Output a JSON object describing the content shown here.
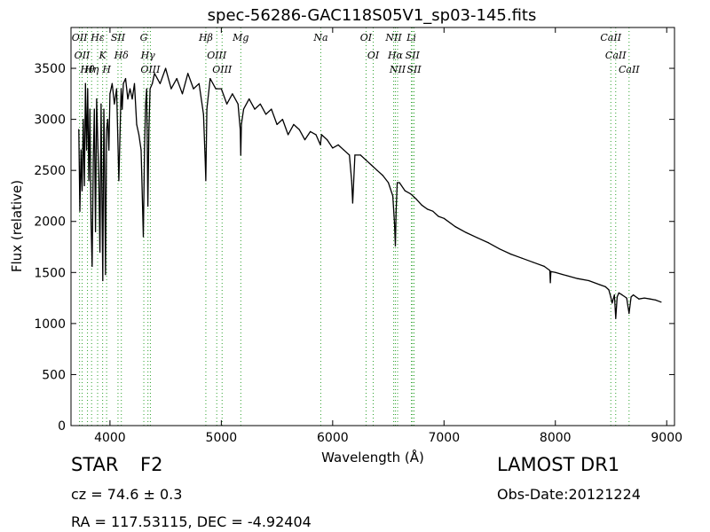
{
  "chart_data": {
    "type": "line",
    "title": "spec-56286-GAC118S05V1_sp03-145.fits",
    "xlabel": "Wavelength (Å)",
    "ylabel": "Flux (relative)",
    "xlim": [
      3650,
      9070
    ],
    "ylim": [
      0,
      3900
    ],
    "xticks": [
      4000,
      5000,
      6000,
      7000,
      8000,
      9000
    ],
    "yticks": [
      0,
      500,
      1000,
      1500,
      2000,
      2500,
      3000,
      3500
    ],
    "grid": false,
    "line_color": "#000000",
    "marker_color": "#2ca02c",
    "series": [
      {
        "x": [
          3720,
          3730,
          3740,
          3750,
          3760,
          3770,
          3780,
          3790,
          3800,
          3810,
          3820,
          3830,
          3840,
          3850,
          3860,
          3870,
          3880,
          3890,
          3900,
          3910,
          3920,
          3935,
          3945,
          3950,
          3960,
          3970,
          3980,
          3990,
          4000,
          4020,
          4040,
          4060,
          4080,
          4100,
          4110,
          4120,
          4140,
          4160,
          4180,
          4200,
          4220,
          4240,
          4260,
          4280,
          4300,
          4310,
          4320,
          4330,
          4340,
          4350,
          4360,
          4380,
          4400,
          4450,
          4500,
          4550,
          4600,
          4650,
          4700,
          4750,
          4800,
          4840,
          4855,
          4861,
          4870,
          4900,
          4950,
          5000,
          5050,
          5100,
          5150,
          5170,
          5175,
          5180,
          5200,
          5250,
          5300,
          5350,
          5400,
          5450,
          5500,
          5550,
          5600,
          5650,
          5700,
          5750,
          5800,
          5850,
          5890,
          5900,
          5950,
          6000,
          6050,
          6100,
          6150,
          6170,
          6180,
          6200,
          6250,
          6300,
          6350,
          6400,
          6450,
          6500,
          6540,
          6555,
          6563,
          6570,
          6580,
          6600,
          6650,
          6700,
          6750,
          6800,
          6850,
          6900,
          6950,
          7000,
          7100,
          7200,
          7300,
          7400,
          7500,
          7600,
          7700,
          7800,
          7900,
          7950,
          7955,
          7960,
          8000,
          8100,
          8200,
          8300,
          8400,
          8450,
          8480,
          8498,
          8510,
          8530,
          8542,
          8555,
          8570,
          8600,
          8640,
          8662,
          8680,
          8700,
          8750,
          8800,
          8850,
          8900,
          8950
        ],
        "y": [
          2900,
          2100,
          2700,
          2300,
          3000,
          2350,
          3350,
          2700,
          3300,
          2400,
          3100,
          2000,
          1560,
          2600,
          3100,
          1900,
          3200,
          2800,
          2400,
          1700,
          3150,
          1420,
          3100,
          2800,
          1480,
          2900,
          3000,
          2700,
          3250,
          3350,
          3150,
          3300,
          2400,
          3300,
          3100,
          3350,
          3400,
          3200,
          3300,
          3200,
          3350,
          2950,
          2850,
          2700,
          1850,
          2700,
          3150,
          3300,
          2150,
          2900,
          3300,
          3350,
          3450,
          3350,
          3500,
          3300,
          3400,
          3250,
          3450,
          3300,
          3350,
          3050,
          2600,
          2400,
          3100,
          3400,
          3300,
          3300,
          3150,
          3250,
          3150,
          2900,
          2650,
          2950,
          3100,
          3200,
          3100,
          3150,
          3050,
          3100,
          2950,
          3000,
          2850,
          2950,
          2900,
          2800,
          2880,
          2850,
          2750,
          2850,
          2800,
          2720,
          2750,
          2700,
          2650,
          2400,
          2180,
          2650,
          2650,
          2600,
          2550,
          2500,
          2450,
          2380,
          2250,
          1980,
          1760,
          2100,
          2380,
          2380,
          2300,
          2270,
          2220,
          2160,
          2120,
          2100,
          2050,
          2030,
          1950,
          1890,
          1840,
          1790,
          1730,
          1680,
          1640,
          1600,
          1560,
          1520,
          1400,
          1510,
          1500,
          1470,
          1440,
          1420,
          1380,
          1360,
          1330,
          1260,
          1200,
          1280,
          1050,
          1260,
          1300,
          1280,
          1250,
          1100,
          1260,
          1280,
          1240,
          1250,
          1240,
          1230,
          1210
        ]
      }
    ],
    "lines": [
      {
        "x": 3727,
        "labels": [
          "OII"
        ]
      },
      {
        "x": 3750,
        "labels": [
          "OII"
        ]
      },
      {
        "x": 3798,
        "labels": [
          "Hθ"
        ]
      },
      {
        "x": 3835,
        "labels": [
          "Hη"
        ]
      },
      {
        "x": 3889,
        "labels": [
          "Hε"
        ]
      },
      {
        "x": 3934,
        "labels": [
          "K"
        ]
      },
      {
        "x": 3970,
        "labels": [
          "H"
        ]
      },
      {
        "x": 4072,
        "labels": [
          "SII"
        ]
      },
      {
        "x": 4102,
        "labels": [
          "Hδ"
        ]
      },
      {
        "x": 4304,
        "labels": [
          "G"
        ]
      },
      {
        "x": 4341,
        "labels": [
          "Hγ"
        ]
      },
      {
        "x": 4363,
        "labels": [
          "OIII"
        ]
      },
      {
        "x": 4861,
        "labels": [
          "Hβ"
        ]
      },
      {
        "x": 4959,
        "labels": [
          "OIII"
        ]
      },
      {
        "x": 5007,
        "labels": [
          "OIII"
        ]
      },
      {
        "x": 5175,
        "labels": [
          "Mg"
        ]
      },
      {
        "x": 5893,
        "labels": [
          "Na"
        ]
      },
      {
        "x": 6300,
        "labels": [
          "OI"
        ]
      },
      {
        "x": 6364,
        "labels": [
          "OI"
        ]
      },
      {
        "x": 6548,
        "labels": [
          "NII"
        ]
      },
      {
        "x": 6563,
        "labels": [
          "Hα"
        ]
      },
      {
        "x": 6583,
        "labels": [
          "NII"
        ]
      },
      {
        "x": 6707,
        "labels": [
          "Li"
        ]
      },
      {
        "x": 6717,
        "labels": [
          "SII"
        ]
      },
      {
        "x": 6731,
        "labels": [
          "SII"
        ]
      },
      {
        "x": 8498,
        "labels": [
          "CaII"
        ]
      },
      {
        "x": 8542,
        "labels": [
          "CaII"
        ]
      },
      {
        "x": 8662,
        "labels": [
          "CaII"
        ]
      }
    ]
  },
  "info": {
    "class": "STAR",
    "subclass": "F2",
    "survey": "LAMOST DR1",
    "cz": "cz = 74.6 ± 0.3",
    "obs_date": "Obs-Date:20121224",
    "radec": "RA = 117.53115, DEC = -4.92404"
  }
}
